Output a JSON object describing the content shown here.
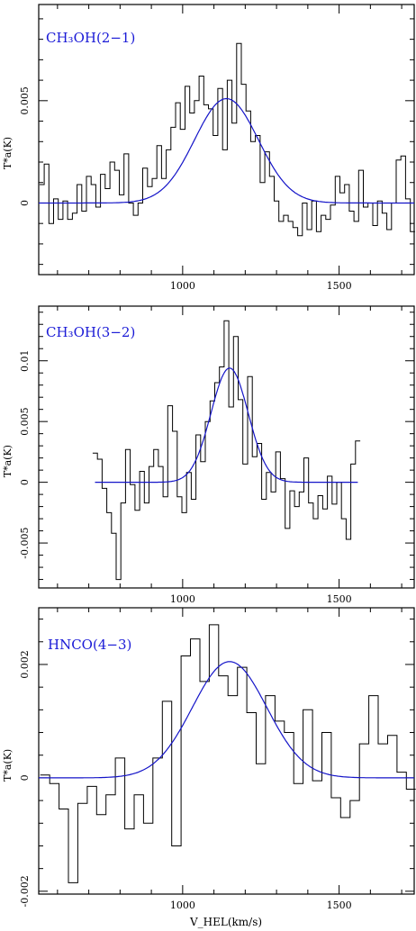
{
  "figure": {
    "x_axis_label": "V_HEL(km/s)",
    "y_axis_label": "T*a(K)"
  },
  "chart_data": [
    {
      "type": "line",
      "title": "CH3OH(2-1)",
      "title_display": "CH₃OH(2−1)",
      "xlabel": "",
      "ylabel": "T*a(K)",
      "xlim": [
        540,
        1740
      ],
      "ylim": [
        -0.0035,
        0.0097
      ],
      "x_ticks": [
        1000,
        1500
      ],
      "y_ticks": [
        0,
        0.005
      ],
      "y_tick_labels": [
        "0",
        "0.005"
      ],
      "series": [
        {
          "role": "observed",
          "color": "#000000",
          "x": [
            550,
            565,
            580,
            595,
            610,
            625,
            640,
            655,
            670,
            685,
            700,
            715,
            730,
            745,
            760,
            775,
            790,
            805,
            820,
            835,
            850,
            865,
            880,
            895,
            910,
            925,
            940,
            955,
            970,
            985,
            1000,
            1015,
            1030,
            1045,
            1060,
            1075,
            1090,
            1105,
            1120,
            1135,
            1150,
            1165,
            1180,
            1195,
            1210,
            1225,
            1240,
            1255,
            1270,
            1285,
            1300,
            1315,
            1330,
            1345,
            1360,
            1375,
            1390,
            1405,
            1420,
            1435,
            1450,
            1465,
            1480,
            1495,
            1510,
            1525,
            1540,
            1555,
            1570,
            1585,
            1600,
            1615,
            1630,
            1645,
            1660,
            1675,
            1690,
            1705,
            1720,
            1735
          ],
          "y": [
            0.0009,
            0.0019,
            -0.001,
            0.0002,
            -0.0008,
            0.0001,
            -0.0008,
            -0.0005,
            0.0009,
            -0.0004,
            0.0013,
            0.0009,
            -0.0002,
            0.0014,
            0.0007,
            0.002,
            0.0016,
            0.0004,
            0.0024,
            0.0,
            -0.0006,
            0.0,
            0.0017,
            0.0008,
            0.0012,
            0.0028,
            0.0012,
            0.0026,
            0.0037,
            0.0049,
            0.0036,
            0.0057,
            0.0044,
            0.005,
            0.0062,
            0.0048,
            0.0046,
            0.0033,
            0.0056,
            0.0026,
            0.006,
            0.0039,
            0.0078,
            0.0058,
            0.0045,
            0.003,
            0.0033,
            0.001,
            0.0025,
            0.0013,
            0.0001,
            -0.0009,
            -0.0006,
            -0.0009,
            -0.0012,
            -0.0016,
            0.0,
            -0.0013,
            0.0001,
            -0.0014,
            -0.0006,
            -0.0008,
            -0.0001,
            0.0013,
            0.0005,
            0.0009,
            -0.0004,
            -0.0009,
            0.0016,
            -0.0002,
            0.0,
            -0.0011,
            0.0001,
            -0.0005,
            -0.0013,
            0.0,
            0.0021,
            0.0023,
            0.0002,
            -0.0014
          ]
        },
        {
          "role": "gaussian-fit",
          "color": "#1414c8",
          "amplitude": 0.0051,
          "center": 1140,
          "fwhm": 240,
          "x_range": [
            540,
            1740
          ]
        }
      ]
    },
    {
      "type": "line",
      "title": "CH3OH(3-2)",
      "title_display": "CH₃OH(3−2)",
      "xlabel": "",
      "ylabel": "T*a(K)",
      "xlim": [
        540,
        1740
      ],
      "ylim": [
        -0.0087,
        0.0145
      ],
      "x_ticks": [
        1000,
        1500
      ],
      "y_ticks": [
        -0.005,
        0,
        0.005,
        0.01
      ],
      "y_tick_labels": [
        "-0.005",
        "0",
        "0.005",
        "0.01"
      ],
      "series": [
        {
          "role": "observed",
          "color": "#000000",
          "x": [
            720,
            735,
            750,
            765,
            780,
            795,
            810,
            825,
            840,
            855,
            870,
            885,
            900,
            915,
            930,
            945,
            960,
            975,
            990,
            1005,
            1020,
            1035,
            1050,
            1065,
            1080,
            1095,
            1110,
            1125,
            1140,
            1155,
            1170,
            1185,
            1200,
            1215,
            1230,
            1245,
            1260,
            1275,
            1290,
            1305,
            1320,
            1335,
            1350,
            1365,
            1380,
            1395,
            1410,
            1425,
            1440,
            1455,
            1470,
            1485,
            1500,
            1515,
            1530,
            1545,
            1560
          ],
          "y": [
            0.0024,
            0.0019,
            -0.0005,
            -0.0025,
            -0.0042,
            -0.008,
            -0.0017,
            0.0027,
            -0.0002,
            -0.0023,
            0.0009,
            -0.0017,
            0.0013,
            0.0027,
            0.0013,
            -0.0012,
            0.0063,
            0.0042,
            -0.0012,
            -0.0025,
            0.0008,
            -0.0014,
            0.0039,
            0.0017,
            0.005,
            0.0067,
            0.0082,
            0.0095,
            0.0133,
            0.0062,
            0.012,
            0.0068,
            0.0015,
            0.0087,
            0.0021,
            0.0032,
            -0.0014,
            0.0008,
            -0.0008,
            0.0025,
            0.0003,
            -0.0038,
            -0.0007,
            -0.002,
            -0.0008,
            0.002,
            -0.0017,
            -0.003,
            -0.0011,
            -0.0022,
            0.0005,
            -0.0018,
            0.0,
            -0.003,
            -0.0047,
            0.0015,
            0.0034
          ]
        },
        {
          "role": "gaussian-fit",
          "color": "#1414c8",
          "amplitude": 0.0094,
          "center": 1150,
          "fwhm": 140,
          "x_range": [
            720,
            1560
          ]
        }
      ]
    },
    {
      "type": "line",
      "title": "HNCO(4-3)",
      "title_display": "HNCO(4−3)",
      "xlabel": "V_HEL(km/s)",
      "ylabel": "T*a(K)",
      "xlim": [
        540,
        1740
      ],
      "ylim": [
        -0.00205,
        0.003
      ],
      "x_ticks": [
        1000,
        1500
      ],
      "y_ticks": [
        -0.002,
        0,
        0.002
      ],
      "y_tick_labels": [
        "-0.002",
        "0",
        "0.002"
      ],
      "series": [
        {
          "role": "observed",
          "color": "#000000",
          "x": [
            560,
            590,
            620,
            650,
            680,
            710,
            740,
            770,
            800,
            830,
            860,
            890,
            920,
            950,
            980,
            1010,
            1040,
            1070,
            1100,
            1130,
            1160,
            1190,
            1220,
            1250,
            1280,
            1310,
            1340,
            1370,
            1400,
            1430,
            1460,
            1490,
            1520,
            1550,
            1580,
            1610,
            1640,
            1670,
            1700,
            1730
          ],
          "y": [
            5e-05,
            -0.0001,
            -0.00055,
            -0.00185,
            -0.00045,
            -0.00015,
            -0.00065,
            -0.0003,
            0.00035,
            -0.0009,
            -0.0003,
            -0.0008,
            0.00035,
            0.00135,
            -0.0012,
            0.00215,
            0.00245,
            0.0017,
            0.0027,
            0.0018,
            0.00145,
            0.00195,
            0.00115,
            0.00025,
            0.00145,
            0.001,
            0.0008,
            -0.0001,
            0.0012,
            -5e-05,
            0.0008,
            -0.00035,
            -0.0007,
            -0.0004,
            0.0006,
            0.00145,
            0.0006,
            0.00075,
            0.0001,
            -0.0002
          ]
        },
        {
          "role": "gaussian-fit",
          "color": "#1414c8",
          "amplitude": 0.00205,
          "center": 1150,
          "fwhm": 280,
          "x_range": [
            540,
            1740
          ]
        }
      ]
    }
  ]
}
